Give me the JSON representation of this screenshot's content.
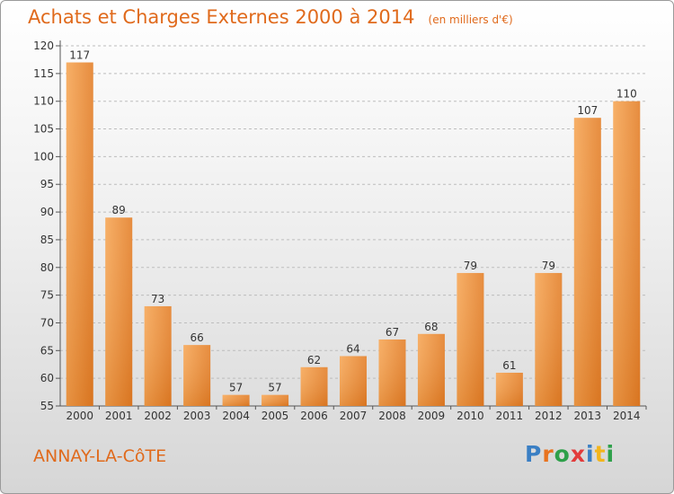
{
  "header": {
    "title": "Achats et Charges Externes 2000 à 2014",
    "subtitle": "(en milliers d'€)"
  },
  "footer": {
    "commune": "ANNAY-LA-CôTE",
    "brand": "Proxiti",
    "brand_colors": [
      "#3a7fc4",
      "#e8731f",
      "#2ea04a",
      "#e23b3b",
      "#3a7fc4",
      "#f2b51c",
      "#2ea04a"
    ]
  },
  "colors": {
    "accent": "#e06a1c",
    "bar_light": "#f6a553",
    "bar_dark": "#d9711f",
    "grid": "#bdbdbd"
  },
  "chart_data": {
    "type": "bar",
    "title": "Achats et Charges Externes 2000 à 2014",
    "subtitle": "(en milliers d'€)",
    "categories": [
      "2000",
      "2001",
      "2002",
      "2003",
      "2004",
      "2005",
      "2006",
      "2007",
      "2008",
      "2009",
      "2010",
      "2011",
      "2012",
      "2013",
      "2014"
    ],
    "values": [
      117,
      89,
      73,
      66,
      57,
      57,
      62,
      64,
      67,
      68,
      79,
      61,
      79,
      107,
      110
    ],
    "xlabel": "",
    "ylabel": "",
    "ylim": [
      55,
      120
    ],
    "yticks": [
      55,
      60,
      65,
      70,
      75,
      80,
      85,
      90,
      95,
      100,
      105,
      110,
      115,
      120
    ],
    "grid": "horizontal dashed",
    "legend": "none"
  }
}
